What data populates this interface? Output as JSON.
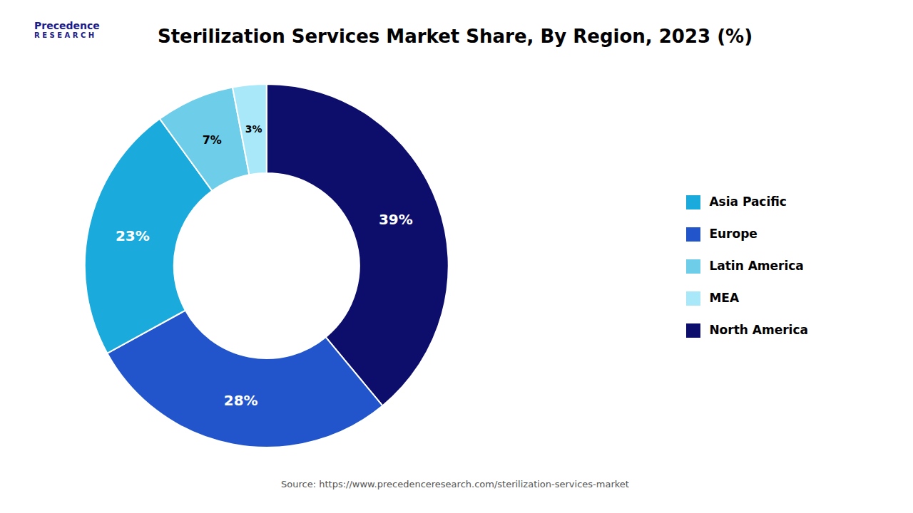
{
  "chart_data": {
    "type": "pie",
    "title": "Sterilization Services Market Share, By Region, 2023 (%)",
    "categories": [
      "North America",
      "Europe",
      "Asia Pacific",
      "Latin America",
      "MEA"
    ],
    "values": [
      39,
      28,
      23,
      7,
      3
    ],
    "value_labels": [
      "39%",
      "28%",
      "23%",
      "7%",
      "3%"
    ],
    "colors": [
      "#0d0d6b",
      "#2255cc",
      "#1aabdc",
      "#6ecde8",
      "#a8e8f8"
    ],
    "data_labels": true,
    "legend": "right",
    "annotations": [
      "Precedence",
      "R E S E A R C H",
      "Source: https://www.precedenceresearch.com/sterilization-services-market"
    ]
  }
}
